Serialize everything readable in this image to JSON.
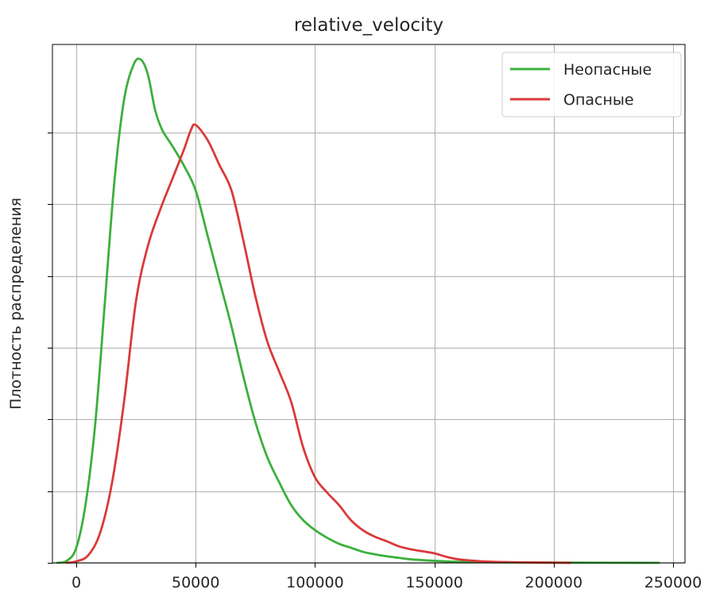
{
  "chart_data": {
    "type": "line",
    "title": "relative_velocity",
    "xlabel": "",
    "ylabel": "Плотность распределения",
    "xlim": [
      -10000,
      255000
    ],
    "ylim": [
      0,
      1.03
    ],
    "x_ticks": [
      0,
      50000,
      100000,
      150000,
      200000,
      250000
    ],
    "x_tick_labels": [
      "0",
      "50000",
      "100000",
      "150000",
      "200000",
      "250000"
    ],
    "y_ticks": [
      0,
      0.1425,
      0.285,
      0.4275,
      0.57,
      0.7125,
      0.855
    ],
    "y_tick_labels_visible": false,
    "grid": true,
    "legend_position": "top-right",
    "series": [
      {
        "name": "Неопасные",
        "color": "#3cb03c",
        "x": [
          -8000,
          -4000,
          0,
          4000,
          8000,
          12000,
          16000,
          20000,
          24000,
          27000,
          30000,
          33000,
          36000,
          40000,
          45000,
          50000,
          55000,
          60000,
          65000,
          70000,
          75000,
          80000,
          85000,
          90000,
          95000,
          100000,
          105000,
          110000,
          115000,
          120000,
          125000,
          130000,
          135000,
          140000,
          150000,
          160000,
          175000,
          200000,
          220000,
          244000
        ],
        "y": [
          0.0,
          0.004,
          0.03,
          0.12,
          0.28,
          0.52,
          0.76,
          0.92,
          0.99,
          1.0,
          0.97,
          0.9,
          0.86,
          0.83,
          0.79,
          0.74,
          0.65,
          0.56,
          0.47,
          0.37,
          0.28,
          0.21,
          0.16,
          0.115,
          0.085,
          0.065,
          0.05,
          0.038,
          0.03,
          0.022,
          0.017,
          0.013,
          0.01,
          0.007,
          0.004,
          0.002,
          0.001,
          0.0005,
          0.0002,
          0.0
        ]
      },
      {
        "name": "Опасные",
        "color": "#d93a3a",
        "x": [
          -4000,
          0,
          5000,
          10000,
          15000,
          20000,
          25000,
          30000,
          35000,
          40000,
          45000,
          48000,
          50000,
          55000,
          60000,
          65000,
          70000,
          75000,
          80000,
          85000,
          90000,
          95000,
          100000,
          105000,
          110000,
          115000,
          120000,
          125000,
          130000,
          135000,
          140000,
          145000,
          150000,
          155000,
          160000,
          170000,
          185000,
          207000
        ],
        "y": [
          0.0,
          0.003,
          0.015,
          0.06,
          0.16,
          0.32,
          0.52,
          0.63,
          0.7,
          0.76,
          0.82,
          0.86,
          0.87,
          0.84,
          0.79,
          0.74,
          0.64,
          0.53,
          0.44,
          0.38,
          0.32,
          0.23,
          0.17,
          0.14,
          0.115,
          0.085,
          0.065,
          0.052,
          0.043,
          0.033,
          0.027,
          0.023,
          0.019,
          0.012,
          0.007,
          0.003,
          0.001,
          0.0
        ]
      }
    ]
  }
}
